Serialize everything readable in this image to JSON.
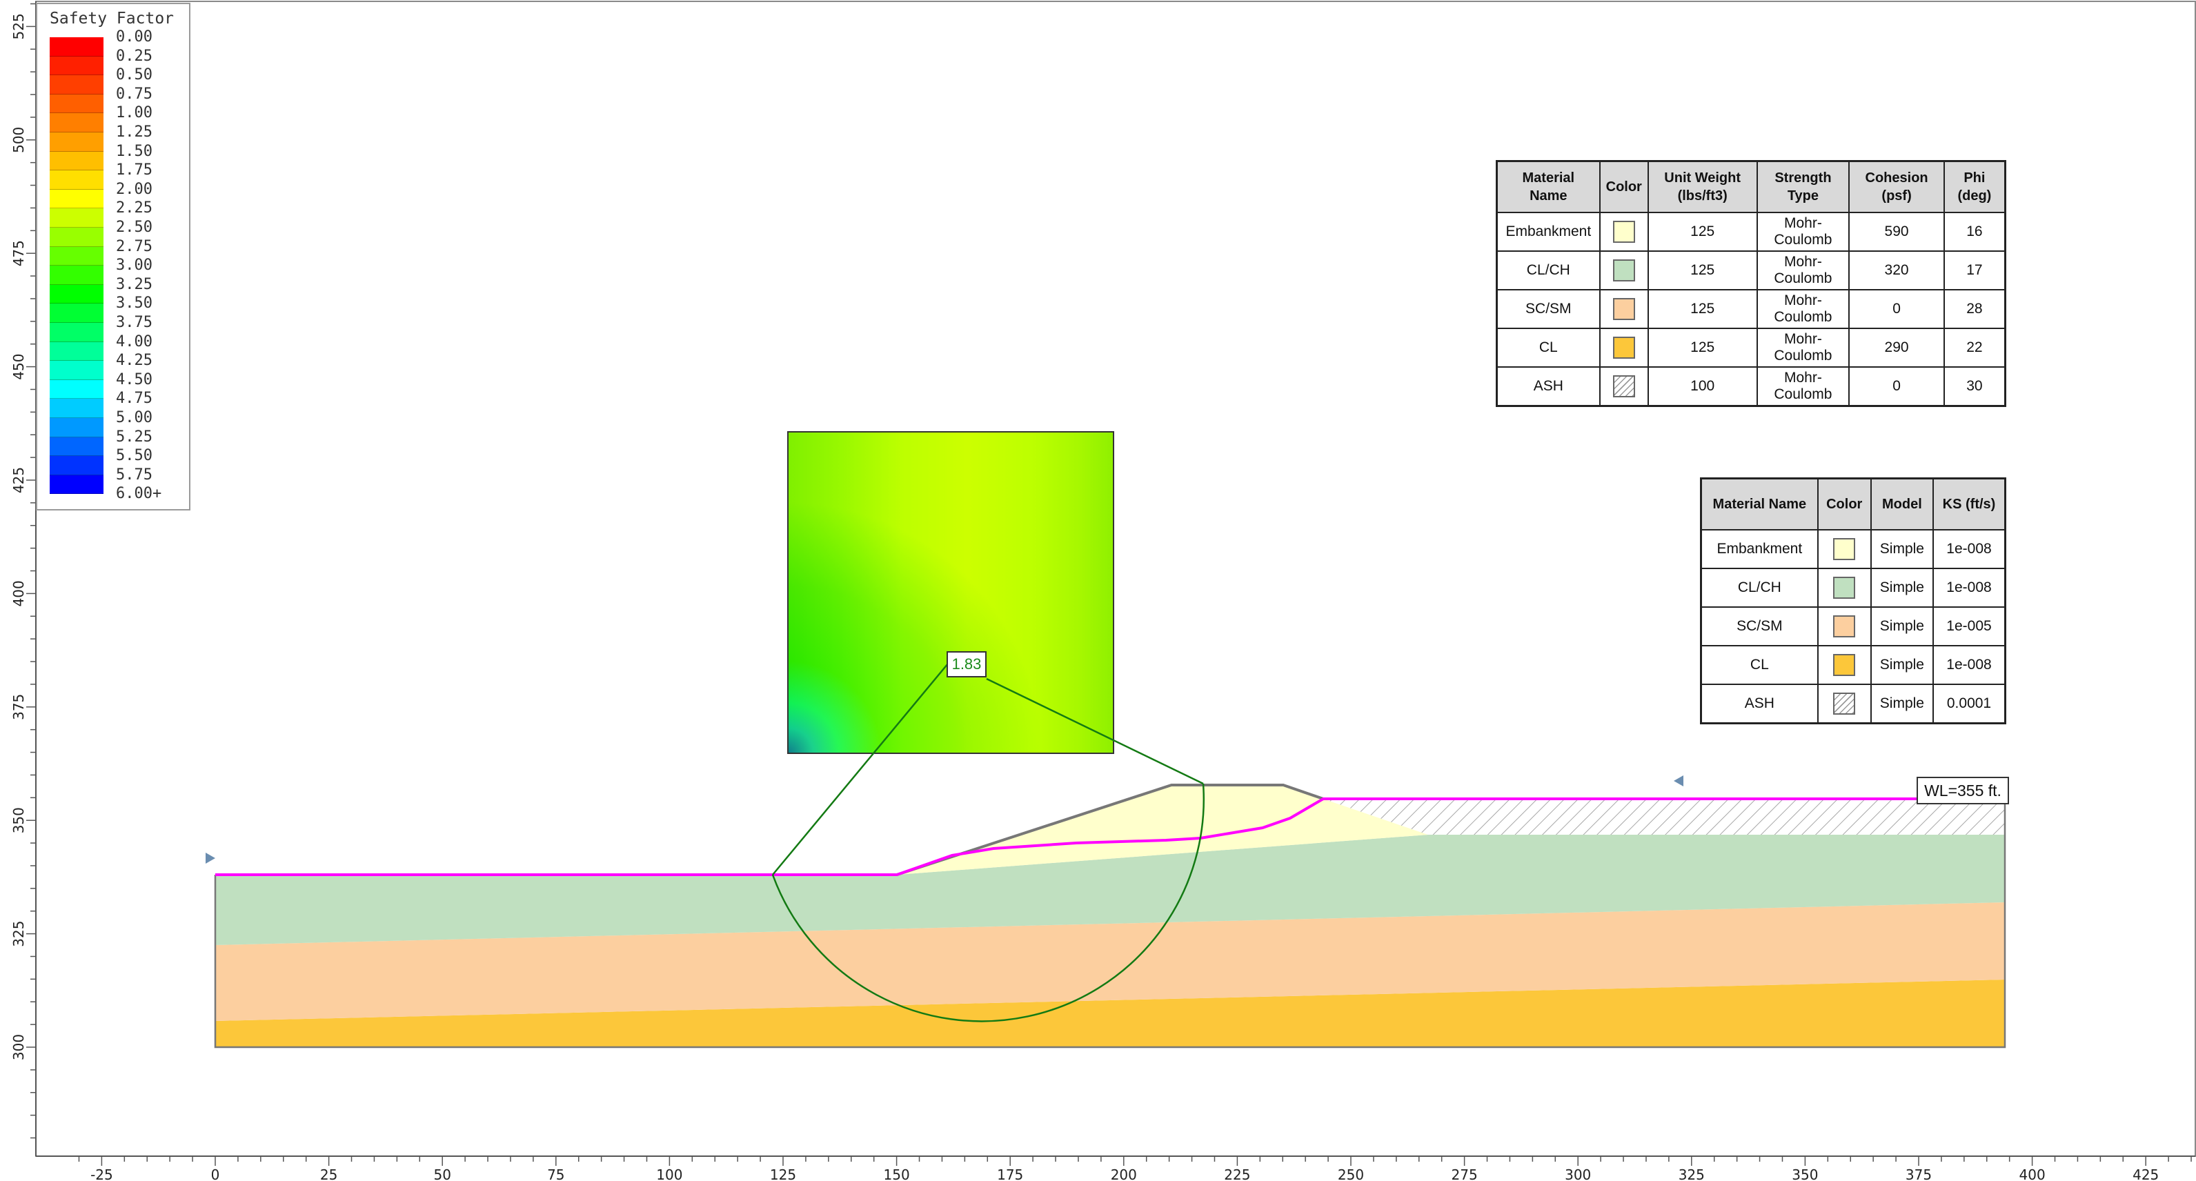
{
  "legend": {
    "title": "Safety Factor",
    "entries": [
      {
        "label": "0.00",
        "color": "#ff0000"
      },
      {
        "label": "0.25",
        "color": "#ff2000"
      },
      {
        "label": "0.50",
        "color": "#ff3f00"
      },
      {
        "label": "0.75",
        "color": "#ff5f00"
      },
      {
        "label": "1.00",
        "color": "#ff7f00"
      },
      {
        "label": "1.25",
        "color": "#ff9f00"
      },
      {
        "label": "1.50",
        "color": "#ffbf00"
      },
      {
        "label": "1.75",
        "color": "#ffdf00"
      },
      {
        "label": "2.00",
        "color": "#ffff00"
      },
      {
        "label": "2.25",
        "color": "#ccff00"
      },
      {
        "label": "2.50",
        "color": "#99ff00"
      },
      {
        "label": "2.75",
        "color": "#66ff00"
      },
      {
        "label": "3.00",
        "color": "#33ff00"
      },
      {
        "label": "3.25",
        "color": "#00ff00"
      },
      {
        "label": "3.50",
        "color": "#00ff33"
      },
      {
        "label": "3.75",
        "color": "#00ff66"
      },
      {
        "label": "4.00",
        "color": "#00ff99"
      },
      {
        "label": "4.25",
        "color": "#00ffcc"
      },
      {
        "label": "4.50",
        "color": "#00ffff"
      },
      {
        "label": "4.75",
        "color": "#00ccff"
      },
      {
        "label": "5.00",
        "color": "#0099ff"
      },
      {
        "label": "5.25",
        "color": "#0066ff"
      },
      {
        "label": "5.50",
        "color": "#0033ff"
      },
      {
        "label": "5.75",
        "color": "#0000ff"
      },
      {
        "label": "6.00+",
        "color": "#0000cc"
      }
    ]
  },
  "axes": {
    "x_ticks": [
      "-25",
      "0",
      "25",
      "50",
      "75",
      "100",
      "125",
      "150",
      "175",
      "200",
      "225",
      "250",
      "275",
      "300",
      "325",
      "350",
      "375",
      "400",
      "425"
    ],
    "y_ticks": [
      "525",
      "500",
      "475",
      "450",
      "425",
      "400",
      "375",
      "350",
      "325",
      "300"
    ]
  },
  "strength_table": {
    "headers": [
      "Material Name",
      "Color",
      "Unit Weight (lbs/ft3)",
      "Strength Type",
      "Cohesion (psf)",
      "Phi (deg)"
    ],
    "rows": [
      {
        "name": "Embankment",
        "color": "#ffffcc",
        "unit_weight": "125",
        "strength_type": "Mohr-Coulomb",
        "cohesion": "590",
        "phi": "16"
      },
      {
        "name": "CL/CH",
        "color": "#c0e0c0",
        "unit_weight": "125",
        "strength_type": "Mohr-Coulomb",
        "cohesion": "320",
        "phi": "17"
      },
      {
        "name": "SC/SM",
        "color": "#fccf9f",
        "unit_weight": "125",
        "strength_type": "Mohr-Coulomb",
        "cohesion": "0",
        "phi": "28"
      },
      {
        "name": "CL",
        "color": "#fcc73a",
        "unit_weight": "125",
        "strength_type": "Mohr-Coulomb",
        "cohesion": "290",
        "phi": "22"
      },
      {
        "name": "ASH",
        "color": "hatch",
        "unit_weight": "100",
        "strength_type": "Mohr-Coulomb",
        "cohesion": "0",
        "phi": "30"
      }
    ]
  },
  "hydraulic_table": {
    "headers": [
      "Material Name",
      "Color",
      "Model",
      "KS (ft/s)"
    ],
    "rows": [
      {
        "name": "Embankment",
        "color": "#ffffcc",
        "model": "Simple",
        "ks": "1e-008"
      },
      {
        "name": "CL/CH",
        "color": "#c0e0c0",
        "model": "Simple",
        "ks": "1e-008"
      },
      {
        "name": "SC/SM",
        "color": "#fccf9f",
        "model": "Simple",
        "ks": "1e-005"
      },
      {
        "name": "CL",
        "color": "#fcc73a",
        "model": "Simple",
        "ks": "1e-008"
      },
      {
        "name": "ASH",
        "color": "hatch",
        "model": "Simple",
        "ks": "0.0001"
      }
    ]
  },
  "critical_surface": {
    "safety_factor": "1.83"
  },
  "water_level": {
    "label": "WL=355 ft."
  },
  "colors": {
    "embankment": "#ffffcc",
    "clch": "#c0e0c0",
    "scsm": "#fccf9f",
    "cl": "#fcc73a",
    "water_table": "#ff00ff",
    "slip_surface": "#137a13"
  }
}
